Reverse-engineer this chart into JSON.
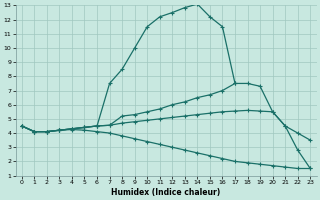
{
  "bg_color": "#c8e8e0",
  "grid_color": "#a0c8c0",
  "line_color": "#1a7068",
  "xlabel": "Humidex (Indice chaleur)",
  "xlim": [
    0,
    23
  ],
  "ylim": [
    1,
    13
  ],
  "xticks": [
    0,
    1,
    2,
    3,
    4,
    5,
    6,
    7,
    8,
    9,
    10,
    11,
    12,
    13,
    14,
    15,
    16,
    17,
    18,
    19,
    20,
    21,
    22,
    23
  ],
  "yticks": [
    1,
    2,
    3,
    4,
    5,
    6,
    7,
    8,
    9,
    10,
    11,
    12,
    13
  ],
  "line1_x": [
    0,
    1,
    2,
    3,
    4,
    5,
    6,
    7,
    8,
    9,
    10,
    11,
    12,
    13,
    14,
    15,
    16,
    17
  ],
  "line1_y": [
    4.5,
    4.1,
    4.1,
    4.2,
    4.3,
    4.4,
    4.5,
    7.5,
    8.5,
    10.0,
    11.5,
    12.2,
    12.5,
    12.85,
    13.1,
    12.2,
    11.5,
    7.5
  ],
  "line2_x": [
    0,
    1,
    2,
    3,
    4,
    5,
    6,
    7,
    8,
    9,
    10,
    11,
    12,
    13,
    14,
    15,
    16,
    17,
    18,
    19,
    20,
    21,
    22,
    23
  ],
  "line2_y": [
    4.5,
    4.1,
    4.1,
    4.2,
    4.3,
    4.4,
    4.5,
    4.55,
    5.2,
    5.3,
    5.5,
    5.7,
    6.0,
    6.2,
    6.5,
    6.7,
    7.0,
    7.5,
    7.5,
    7.3,
    5.5,
    4.5,
    2.8,
    1.5
  ],
  "line3_x": [
    0,
    1,
    2,
    3,
    4,
    5,
    6,
    7,
    8,
    9,
    10,
    11,
    12,
    13,
    14,
    15,
    16,
    17,
    18,
    19,
    20,
    21,
    22,
    23
  ],
  "line3_y": [
    4.5,
    4.1,
    4.1,
    4.2,
    4.3,
    4.4,
    4.5,
    4.55,
    4.7,
    4.8,
    4.9,
    5.0,
    5.1,
    5.2,
    5.3,
    5.4,
    5.5,
    5.55,
    5.6,
    5.55,
    5.5,
    4.5,
    4.0,
    3.5
  ],
  "line4_x": [
    0,
    1,
    2,
    3,
    4,
    5,
    6,
    7,
    8,
    9,
    10,
    11,
    12,
    13,
    14,
    15,
    16,
    17,
    18,
    19,
    20,
    21,
    22,
    23
  ],
  "line4_y": [
    4.5,
    4.1,
    4.1,
    4.2,
    4.25,
    4.2,
    4.1,
    4.0,
    3.8,
    3.6,
    3.4,
    3.2,
    3.0,
    2.8,
    2.6,
    2.4,
    2.2,
    2.0,
    1.9,
    1.8,
    1.7,
    1.6,
    1.5,
    1.5
  ]
}
